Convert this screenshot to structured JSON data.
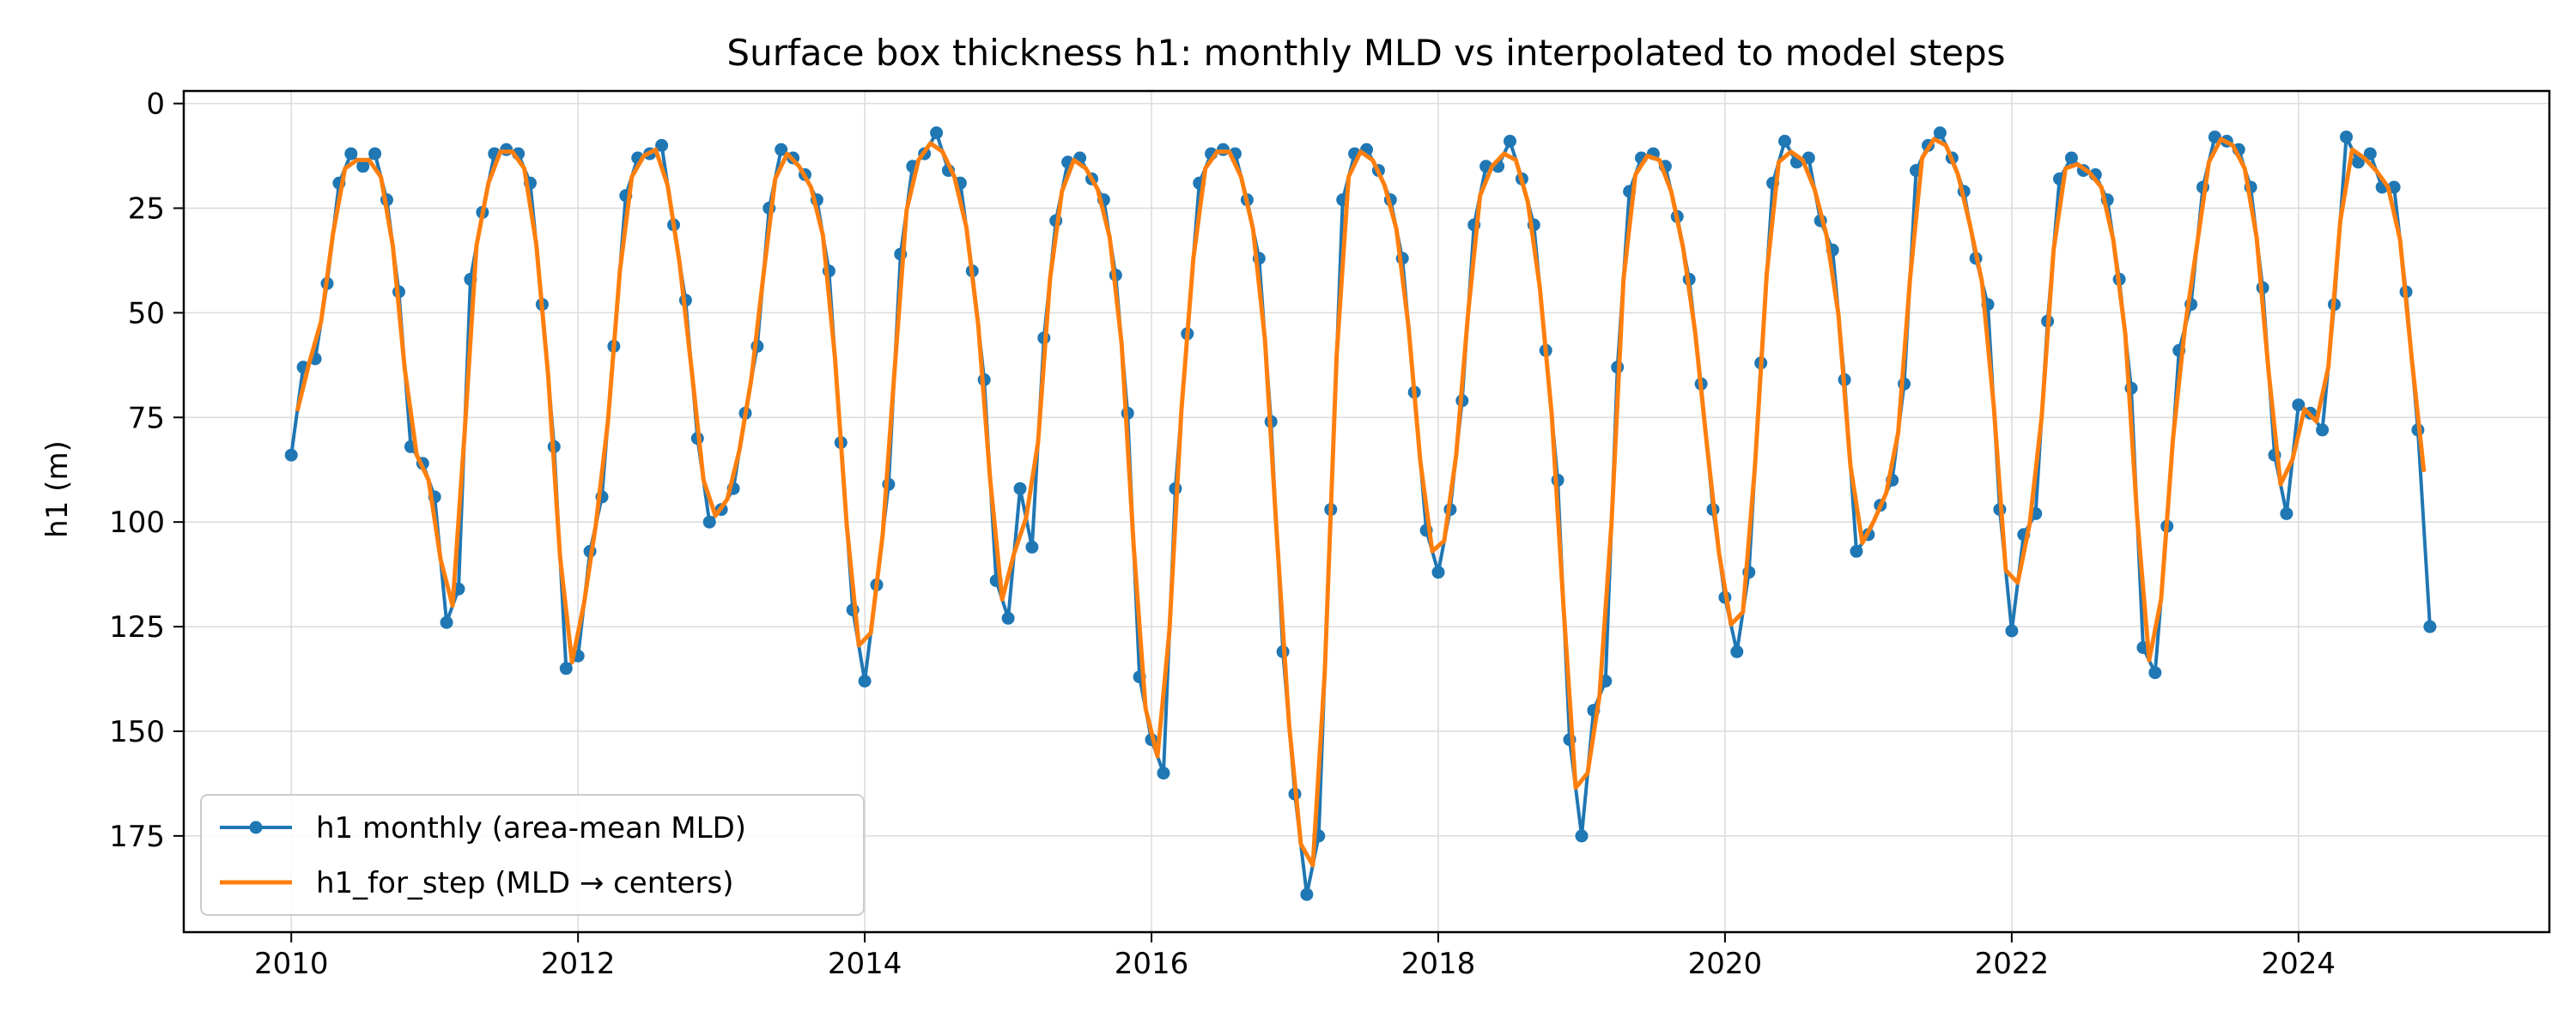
{
  "chart_data": {
    "type": "line",
    "title": "Surface box thickness h1: monthly MLD vs interpolated to model steps",
    "xlabel": "",
    "ylabel": "h1 (m)",
    "xlim": [
      2009.25,
      2025.75
    ],
    "ylim": [
      198,
      -3
    ],
    "y_inverted": true,
    "grid": true,
    "legend_position": "lower-left",
    "x_ticks": [
      2010,
      2012,
      2014,
      2016,
      2018,
      2020,
      2022,
      2024
    ],
    "y_ticks": [
      0,
      25,
      50,
      75,
      100,
      125,
      150,
      175
    ],
    "series": [
      {
        "name": "h1 monthly (area-mean MLD)",
        "color": "#1f77b4",
        "marker": "circle",
        "x_start": 2010.0,
        "x_step": 0.0833333,
        "values": [
          84,
          63,
          61,
          43,
          19,
          12,
          15,
          12,
          23,
          45,
          82,
          86,
          94,
          124,
          116,
          42,
          26,
          12,
          11,
          12,
          19,
          48,
          82,
          135,
          132,
          107,
          94,
          58,
          22,
          13,
          12,
          10,
          29,
          47,
          80,
          100,
          97,
          92,
          74,
          58,
          25,
          11,
          13,
          17,
          23,
          40,
          81,
          121,
          138,
          115,
          91,
          36,
          15,
          12,
          7,
          16,
          19,
          40,
          66,
          114,
          123,
          92,
          106,
          56,
          28,
          14,
          13,
          18,
          23,
          41,
          74,
          137,
          152,
          160,
          92,
          55,
          19,
          12,
          11,
          12,
          23,
          37,
          76,
          131,
          165,
          189,
          175,
          97,
          23,
          12,
          11,
          16,
          23,
          37,
          69,
          102,
          112,
          97,
          71,
          29,
          15,
          15,
          9,
          18,
          29,
          59,
          90,
          152,
          175,
          145,
          138,
          63,
          21,
          13,
          12,
          15,
          27,
          42,
          67,
          97,
          118,
          131,
          112,
          62,
          19,
          9,
          14,
          13,
          28,
          35,
          66,
          107,
          103,
          96,
          90,
          67,
          16,
          10,
          7,
          13,
          21,
          37,
          48,
          97,
          126,
          103,
          98,
          52,
          18,
          13,
          16,
          17,
          23,
          42,
          68,
          130,
          136,
          101,
          59,
          48,
          20,
          8,
          9,
          11,
          20,
          44,
          84,
          98,
          72,
          74,
          78,
          48,
          8,
          14,
          12,
          20,
          20,
          45,
          78,
          125
        ]
      },
      {
        "name": "h1_for_step (MLD → centers)",
        "color": "#ff7f0e",
        "marker": "none",
        "x_start": 2010.0417,
        "x_step": 0.0833333,
        "values": [
          73.5,
          62.0,
          52.0,
          31.0,
          15.5,
          13.5,
          13.5,
          17.5,
          34.0,
          63.5,
          84.0,
          90.0,
          109.0,
          120.0,
          79.0,
          34.0,
          19.0,
          11.5,
          11.5,
          15.5,
          33.5,
          65.0,
          108.5,
          133.5,
          119.5,
          100.5,
          76.0,
          40.0,
          17.5,
          12.5,
          11.0,
          19.5,
          38.0,
          63.5,
          90.0,
          98.5,
          94.5,
          83.0,
          66.0,
          41.5,
          18.0,
          12.0,
          15.0,
          20.0,
          31.5,
          60.5,
          101.0,
          129.5,
          126.5,
          103.0,
          63.5,
          25.5,
          13.5,
          9.5,
          11.5,
          17.5,
          29.5,
          53.0,
          90.0,
          118.5,
          107.5,
          99.0,
          81.0,
          42.0,
          21.0,
          13.5,
          15.5,
          20.5,
          32.0,
          57.5,
          105.5,
          144.5,
          156.0,
          126.0,
          73.5,
          37.0,
          15.5,
          11.5,
          11.5,
          17.5,
          30.0,
          56.5,
          103.5,
          148.0,
          177.0,
          182.0,
          136.0,
          60.0,
          17.5,
          11.5,
          13.5,
          19.5,
          30.0,
          53.0,
          85.5,
          107.0,
          104.5,
          84.0,
          50.0,
          22.0,
          15.0,
          12.0,
          13.5,
          23.5,
          44.0,
          74.5,
          121.0,
          163.5,
          160.0,
          141.5,
          100.5,
          42.0,
          17.0,
          12.5,
          13.5,
          21.0,
          34.5,
          54.5,
          82.0,
          107.5,
          124.5,
          121.5,
          87.0,
          40.5,
          14.0,
          11.5,
          13.5,
          20.5,
          31.5,
          50.5,
          86.5,
          105.0,
          99.5,
          93.0,
          78.5,
          41.5,
          13.0,
          8.5,
          10.0,
          17.0,
          29.0,
          42.5,
          72.5,
          111.5,
          114.5,
          100.5,
          75.0,
          35.0,
          15.5,
          14.5,
          16.5,
          20.0,
          32.5,
          55.0,
          99.0,
          133.0,
          118.5,
          80.0,
          53.5,
          34.0,
          14.0,
          8.5,
          10.0,
          15.5,
          32.0,
          64.0,
          91.0,
          85.0,
          73.0,
          76.0,
          63.0,
          28.0,
          11.0,
          13.0,
          16.0,
          20.0,
          32.5,
          61.5,
          88.0
        ]
      }
    ]
  }
}
